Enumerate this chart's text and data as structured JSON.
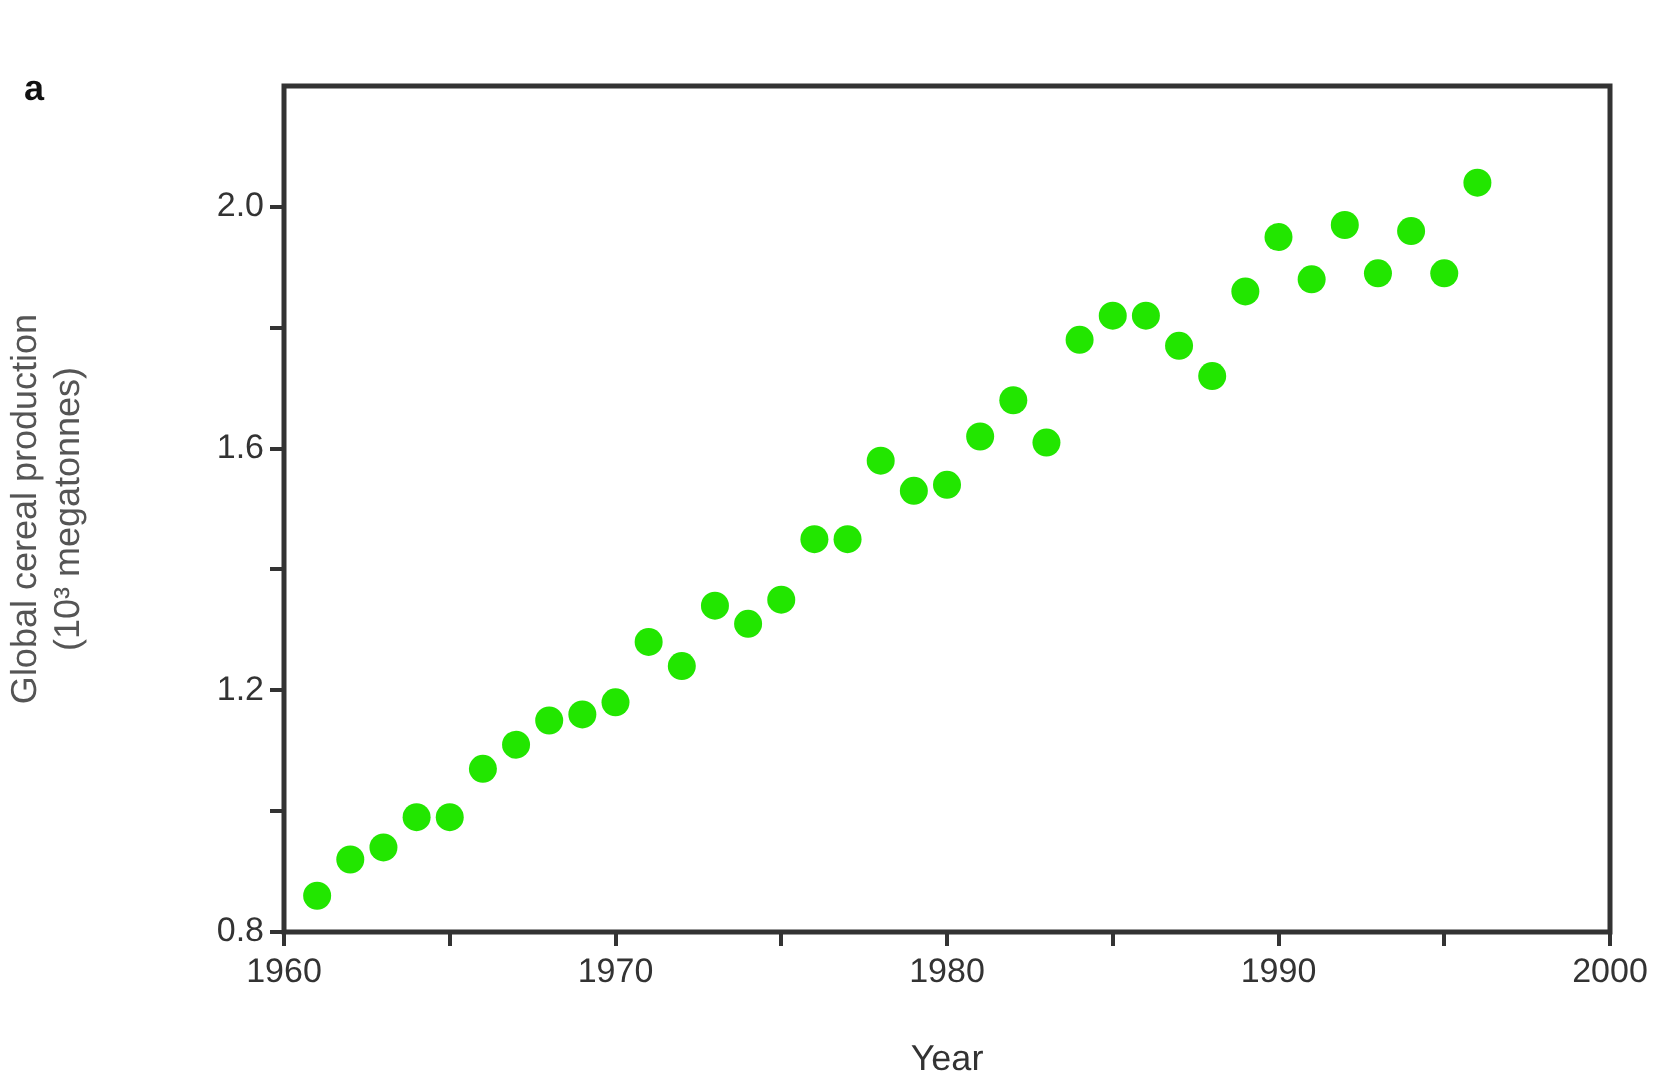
{
  "chart_data": {
    "type": "scatter",
    "xlabel": "Year",
    "ylabel": "Global cereal production (10³ megatonnes)",
    "annotations": [
      "a"
    ],
    "x": [
      1961,
      1962,
      1963,
      1964,
      1965,
      1966,
      1967,
      1968,
      1969,
      1970,
      1971,
      1972,
      1973,
      1974,
      1975,
      1976,
      1977,
      1978,
      1979,
      1980,
      1981,
      1982,
      1983,
      1984,
      1985,
      1986,
      1987,
      1988,
      1989,
      1990,
      1991,
      1992,
      1993,
      1994,
      1995,
      1996
    ],
    "values": [
      0.86,
      0.92,
      0.94,
      0.99,
      0.99,
      1.07,
      1.11,
      1.15,
      1.16,
      1.18,
      1.28,
      1.24,
      1.34,
      1.31,
      1.35,
      1.45,
      1.45,
      1.58,
      1.53,
      1.54,
      1.62,
      1.68,
      1.61,
      1.78,
      1.82,
      1.82,
      1.77,
      1.72,
      1.86,
      1.95,
      1.88,
      1.97,
      1.89,
      1.96,
      1.89,
      2.04
    ],
    "color": "#22e600",
    "marker": "circle",
    "grid": false,
    "xlim": [
      1960,
      2000
    ],
    "xticks": [
      1960,
      {
        "value": 1965,
        "label": null
      },
      1970,
      {
        "value": 1975,
        "label": null
      },
      1980,
      {
        "value": 1985,
        "label": null
      },
      1990,
      {
        "value": 1995,
        "label": null
      },
      2000
    ],
    "ylim": [
      0.8,
      2.2
    ],
    "yticks": [
      {
        "value": 0.8,
        "label": "0.8"
      },
      {
        "value": 1.0,
        "label": null
      },
      {
        "value": 1.2,
        "label": "1.2"
      },
      {
        "value": 1.4,
        "label": null
      },
      {
        "value": 1.6,
        "label": "1.6"
      },
      {
        "value": 1.8,
        "label": null
      },
      {
        "value": 2.0,
        "label": "2.0"
      }
    ]
  }
}
